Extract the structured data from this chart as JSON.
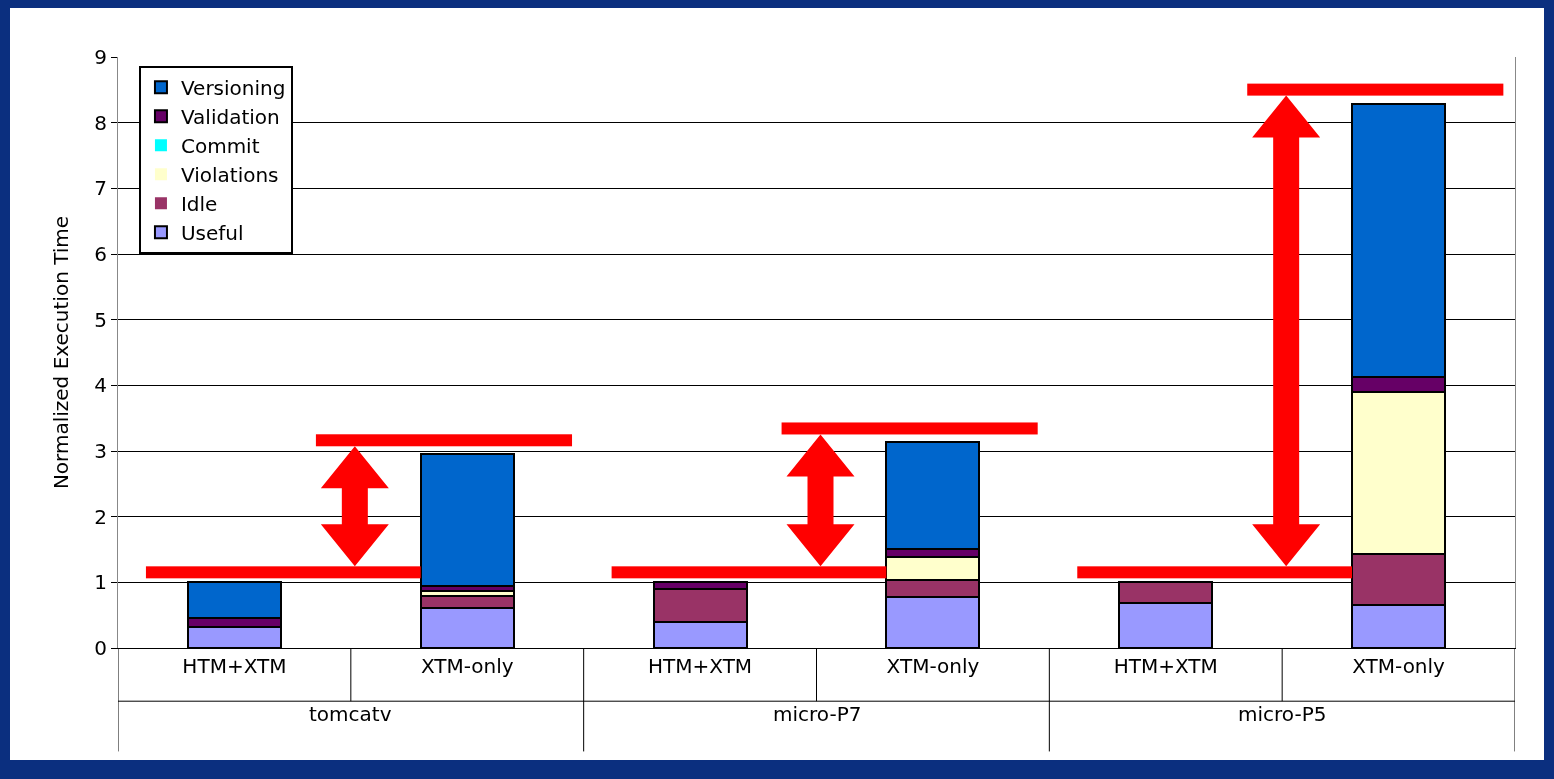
{
  "chart_data": {
    "type": "bar",
    "stacked": true,
    "ylabel": "Normalized Execution Time",
    "categories": [
      "HTM+XTM",
      "XTM-only",
      "HTM+XTM",
      "XTM-only",
      "HTM+XTM",
      "XTM-only"
    ],
    "annotations": [
      "tomcatv",
      "micro-P7",
      "micro-P5"
    ],
    "series": [
      {
        "name": "Useful",
        "color": "#9999ff",
        "values": [
          0.32,
          0.61,
          0.4,
          0.77,
          0.68,
          0.65
        ]
      },
      {
        "name": "Idle",
        "color": "#993366",
        "values": [
          0,
          0.18,
          0.5,
          0.26,
          0.32,
          0.78
        ]
      },
      {
        "name": "Violations",
        "color": "#ffffcc",
        "values": [
          0,
          0.08,
          0,
          0.36,
          0,
          2.47
        ]
      },
      {
        "name": "Commit",
        "color": "#00ffff",
        "values": [
          0,
          0,
          0,
          0,
          0,
          0
        ]
      },
      {
        "name": "Validation",
        "color": "#660066",
        "values": [
          0.13,
          0.08,
          0.1,
          0.12,
          0,
          0.22
        ]
      },
      {
        "name": "Versioning",
        "color": "#0066cc",
        "values": [
          0.55,
          2.0,
          0,
          1.62,
          0,
          4.17
        ]
      }
    ],
    "ylim": [
      0,
      9
    ],
    "yticks": [
      0,
      1,
      2,
      3,
      4,
      5,
      6,
      7,
      8,
      9
    ],
    "grid": "y",
    "legend": "top left"
  }
}
